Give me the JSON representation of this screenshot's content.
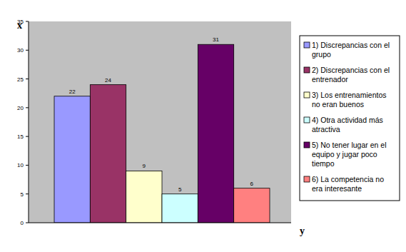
{
  "chart_data": {
    "type": "bar",
    "ylabel": "x",
    "xlabel": "y",
    "categories": [
      "1) Discrepancias con el grupo",
      "2) Discrepancias con el entrenador",
      "3) Los entrenamientos no eran buenos",
      "4) Otra actividad más atractiva",
      "5) No tener lugar en el equipo y jugar poco tiempo",
      "6) La competencia no era interesante"
    ],
    "values": [
      22,
      24,
      9,
      5,
      31,
      6
    ],
    "colors": [
      "#9999ff",
      "#993366",
      "#ffffcc",
      "#ccffff",
      "#660066",
      "#ff8080"
    ],
    "ylim": [
      0,
      35
    ],
    "yticks": [
      0,
      5,
      10,
      15,
      20,
      25,
      30,
      35
    ],
    "grid": false,
    "legend": "right",
    "data_labels": true,
    "tick_labels": "y"
  }
}
